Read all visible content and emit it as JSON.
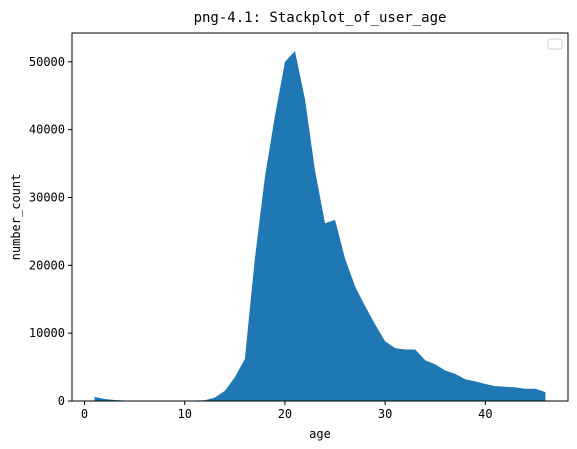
{
  "chart_data": {
    "type": "area",
    "title": "png-4.1: Stackplot_of_user_age",
    "xlabel": "age",
    "ylabel": "number_count",
    "xlim": [
      -1.25,
      48.25
    ],
    "ylim": [
      0,
      54250
    ],
    "xticks": [
      0,
      10,
      20,
      30,
      40
    ],
    "yticks": [
      0,
      10000,
      20000,
      30000,
      40000,
      50000
    ],
    "legend": "top-right",
    "grid": false,
    "color": "#1f77b4",
    "x": [
      1,
      2,
      3,
      4,
      5,
      6,
      7,
      8,
      9,
      10,
      11,
      12,
      13,
      14,
      15,
      16,
      17,
      18,
      19,
      20,
      21,
      22,
      23,
      24,
      25,
      26,
      27,
      28,
      29,
      30,
      31,
      32,
      33,
      34,
      35,
      36,
      37,
      38,
      39,
      40,
      41,
      42,
      43,
      44,
      45,
      46
    ],
    "values": [
      600,
      300,
      150,
      80,
      50,
      40,
      30,
      30,
      30,
      50,
      80,
      120,
      500,
      1500,
      3500,
      6200,
      21000,
      33000,
      42000,
      50000,
      51600,
      44500,
      34000,
      26200,
      26700,
      21000,
      16900,
      14000,
      11300,
      8800,
      7800,
      7600,
      7600,
      6000,
      5400,
      4500,
      4000,
      3200,
      2900,
      2500,
      2200,
      2100,
      2000,
      1800,
      1800,
      1300
    ]
  }
}
